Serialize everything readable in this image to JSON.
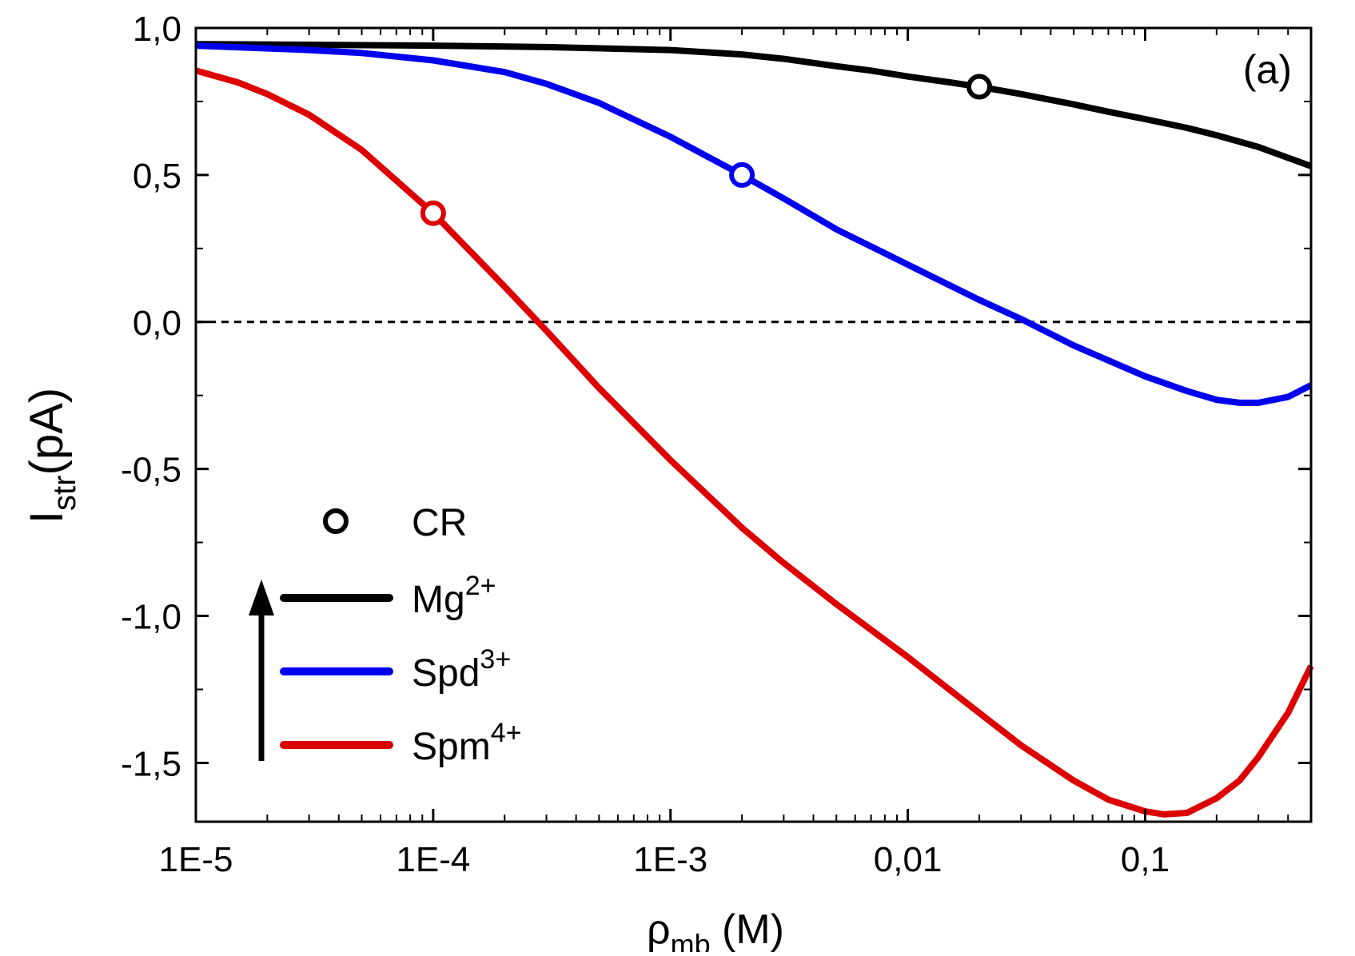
{
  "chart_data": {
    "type": "line",
    "panel_label": "(a)",
    "xlabel": {
      "main": "ρ",
      "sub": "mb",
      "rest": " (M)"
    },
    "ylabel": {
      "main": "I",
      "sub": "str",
      "rest": "(pA)"
    },
    "x_scale": "log",
    "xlim": [
      1e-05,
      0.5
    ],
    "ylim": [
      -1.7,
      1.0
    ],
    "x_ticks": [
      {
        "value": 1e-05,
        "label": "1E-5"
      },
      {
        "value": 0.0001,
        "label": "1E-4"
      },
      {
        "value": 0.001,
        "label": "1E-3"
      },
      {
        "value": 0.01,
        "label": "0,01"
      },
      {
        "value": 0.1,
        "label": "0,1"
      }
    ],
    "y_ticks": [
      {
        "value": 1.0,
        "label": "1,0"
      },
      {
        "value": 0.5,
        "label": "0,5"
      },
      {
        "value": 0.0,
        "label": "0,0"
      },
      {
        "value": -0.5,
        "label": "-0,5"
      },
      {
        "value": -1.0,
        "label": "-1,0"
      },
      {
        "value": -1.5,
        "label": "-1,5"
      }
    ],
    "y_minor_ticks": [
      0.75,
      0.25,
      -0.25,
      -0.75,
      -1.25
    ],
    "zero_line": {
      "y": 0,
      "style": "dashed"
    },
    "grid": false,
    "legend": {
      "position": "bottom-left",
      "marker_label": "CR",
      "arrow": "up"
    },
    "series": [
      {
        "name": "Mg",
        "superscript": "2+",
        "color": "#000000",
        "x": [
          1e-05,
          3e-05,
          0.0001,
          0.0003,
          0.001,
          0.002,
          0.003,
          0.005,
          0.007,
          0.01,
          0.015,
          0.02,
          0.03,
          0.05,
          0.07,
          0.1,
          0.15,
          0.2,
          0.3,
          0.5
        ],
        "y": [
          0.945,
          0.943,
          0.94,
          0.935,
          0.925,
          0.91,
          0.895,
          0.87,
          0.855,
          0.835,
          0.815,
          0.8,
          0.775,
          0.74,
          0.715,
          0.69,
          0.66,
          0.635,
          0.595,
          0.53
        ],
        "critical_point": {
          "x": 0.02,
          "y": 0.8
        }
      },
      {
        "name": "Spd",
        "superscript": "3+",
        "color": "#0000ee",
        "x": [
          1e-05,
          3e-05,
          5e-05,
          0.0001,
          0.0002,
          0.0003,
          0.0005,
          0.001,
          0.002,
          0.003,
          0.005,
          0.01,
          0.02,
          0.03,
          0.05,
          0.1,
          0.15,
          0.2,
          0.25,
          0.3,
          0.4,
          0.5
        ],
        "y": [
          0.94,
          0.925,
          0.915,
          0.89,
          0.85,
          0.81,
          0.745,
          0.63,
          0.5,
          0.42,
          0.315,
          0.195,
          0.075,
          0.01,
          -0.08,
          -0.185,
          -0.235,
          -0.265,
          -0.275,
          -0.275,
          -0.255,
          -0.215
        ],
        "critical_point": {
          "x": 0.002,
          "y": 0.5
        }
      },
      {
        "name": "Spm",
        "superscript": "4+",
        "color": "#dd0000",
        "x": [
          1e-05,
          1.5e-05,
          2e-05,
          3e-05,
          5e-05,
          0.0001,
          0.0002,
          0.0003,
          0.0005,
          0.001,
          0.002,
          0.003,
          0.005,
          0.01,
          0.02,
          0.03,
          0.05,
          0.07,
          0.1,
          0.12,
          0.15,
          0.2,
          0.25,
          0.3,
          0.4,
          0.5
        ],
        "y": [
          0.855,
          0.815,
          0.775,
          0.705,
          0.585,
          0.37,
          0.12,
          -0.03,
          -0.225,
          -0.47,
          -0.7,
          -0.82,
          -0.96,
          -1.14,
          -1.33,
          -1.44,
          -1.56,
          -1.625,
          -1.665,
          -1.675,
          -1.67,
          -1.62,
          -1.56,
          -1.48,
          -1.33,
          -1.17
        ],
        "critical_point": {
          "x": 0.0001,
          "y": 0.37
        }
      }
    ]
  }
}
